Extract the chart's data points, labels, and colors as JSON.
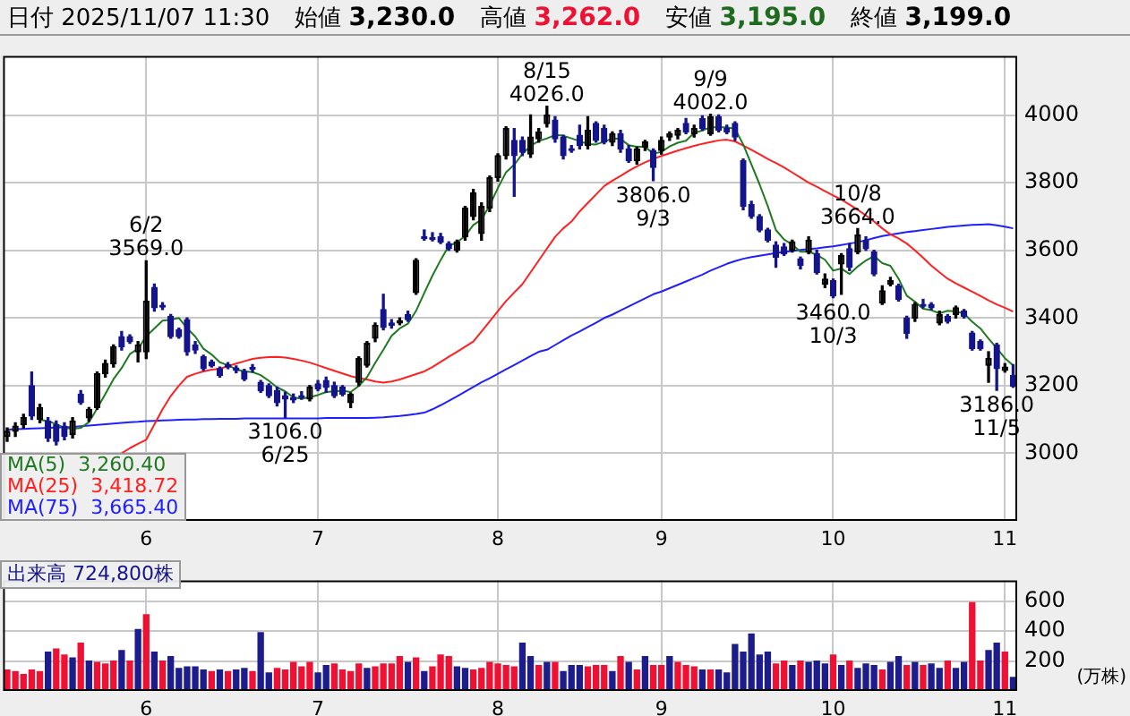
{
  "chart_data": [
    {
      "type": "candlestick",
      "title": "日付 2025/11/07 11:30",
      "categories": [
        null,
        null,
        null,
        null,
        null,
        null,
        null,
        null,
        null,
        null,
        null,
        null,
        null,
        null,
        null,
        null,
        null,
        "6",
        null,
        null,
        null,
        null,
        null,
        null,
        null,
        null,
        null,
        null,
        null,
        null,
        null,
        null,
        null,
        null,
        null,
        null,
        null,
        null,
        "7",
        null,
        null,
        null,
        null,
        null,
        null,
        null,
        null,
        null,
        null,
        null,
        null,
        null,
        null,
        null,
        null,
        null,
        null,
        null,
        null,
        null,
        "8",
        null,
        null,
        null,
        null,
        null,
        null,
        null,
        null,
        null,
        null,
        null,
        null,
        null,
        null,
        null,
        null,
        null,
        null,
        null,
        "9",
        null,
        null,
        null,
        null,
        null,
        null,
        null,
        null,
        null,
        null,
        null,
        null,
        null,
        null,
        null,
        null,
        null,
        null,
        null,
        null,
        "10",
        null,
        null,
        null,
        null,
        null,
        null,
        null,
        null,
        null,
        null,
        null,
        null,
        null,
        null,
        null,
        null,
        null,
        null,
        null,
        null,
        "11",
        null
      ],
      "ohlc": [
        [
          3050,
          3075,
          3035,
          3065
        ],
        [
          3065,
          3090,
          3050,
          3080
        ],
        [
          3085,
          3115,
          3075,
          3105
        ],
        [
          3200,
          3240,
          3100,
          3110
        ],
        [
          3100,
          3145,
          3090,
          3135
        ],
        [
          3095,
          3105,
          3035,
          3045
        ],
        [
          3085,
          3095,
          3025,
          3035
        ],
        [
          3080,
          3090,
          3040,
          3050
        ],
        [
          3055,
          3105,
          3045,
          3095
        ],
        [
          3175,
          3185,
          3145,
          3150
        ],
        [
          3105,
          3135,
          3095,
          3130
        ],
        [
          3135,
          3240,
          3130,
          3235
        ],
        [
          3235,
          3275,
          3225,
          3265
        ],
        [
          3265,
          3320,
          3255,
          3315
        ],
        [
          3345,
          3360,
          3305,
          3315
        ],
        [
          3345,
          3350,
          3325,
          3330
        ],
        [
          3300,
          3330,
          3270,
          3320
        ],
        [
          3300,
          3569,
          3280,
          3450
        ],
        [
          3490,
          3500,
          3420,
          3430
        ],
        [
          3435,
          3445,
          3425,
          3432
        ],
        [
          3405,
          3410,
          3340,
          3345
        ],
        [
          3365,
          3370,
          3340,
          3345
        ],
        [
          3395,
          3400,
          3290,
          3300
        ],
        [
          3320,
          3330,
          3295,
          3305
        ],
        [
          3285,
          3290,
          3245,
          3250
        ],
        [
          3270,
          3275,
          3255,
          3258
        ],
        [
          3250,
          3255,
          3225,
          3230
        ],
        [
          3262,
          3268,
          3250,
          3255
        ],
        [
          3252,
          3258,
          3238,
          3245
        ],
        [
          3242,
          3248,
          3215,
          3220
        ],
        [
          3250,
          3262,
          3240,
          3248
        ],
        [
          3210,
          3215,
          3180,
          3185
        ],
        [
          3200,
          3205,
          3165,
          3170
        ],
        [
          3185,
          3195,
          3140,
          3150
        ],
        [
          3170,
          3180,
          3106,
          3160
        ],
        [
          3165,
          3175,
          3150,
          3158
        ],
        [
          3170,
          3182,
          3160,
          3165
        ],
        [
          3160,
          3200,
          3155,
          3195
        ],
        [
          3205,
          3215,
          3185,
          3190
        ],
        [
          3215,
          3225,
          3180,
          3195
        ],
        [
          3200,
          3210,
          3165,
          3170
        ],
        [
          3195,
          3200,
          3170,
          3175
        ],
        [
          3150,
          3178,
          3135,
          3175
        ],
        [
          3210,
          3285,
          3200,
          3280
        ],
        [
          3260,
          3330,
          3255,
          3325
        ],
        [
          3340,
          3385,
          3330,
          3378
        ],
        [
          3425,
          3470,
          3365,
          3372
        ],
        [
          3385,
          3395,
          3370,
          3378
        ],
        [
          3385,
          3400,
          3380,
          3392
        ],
        [
          3410,
          3420,
          3390,
          3395
        ],
        [
          3475,
          3575,
          3470,
          3570
        ],
        [
          3640,
          3660,
          3630,
          3635
        ],
        [
          3638,
          3652,
          3628,
          3632
        ],
        [
          3640,
          3650,
          3620,
          3625
        ],
        [
          3620,
          3625,
          3600,
          3605
        ],
        [
          3600,
          3630,
          3595,
          3625
        ],
        [
          3640,
          3730,
          3630,
          3725
        ],
        [
          3700,
          3780,
          3690,
          3770
        ],
        [
          3650,
          3740,
          3630,
          3730
        ],
        [
          3725,
          3820,
          3715,
          3815
        ],
        [
          3815,
          3885,
          3805,
          3880
        ],
        [
          3880,
          3965,
          3870,
          3960
        ],
        [
          3925,
          3960,
          3760,
          3880
        ],
        [
          3925,
          3935,
          3880,
          3890
        ],
        [
          3885,
          4000,
          3875,
          3935
        ],
        [
          3930,
          3960,
          3920,
          3950
        ],
        [
          3975,
          4026,
          3965,
          4000
        ],
        [
          3985,
          3995,
          3920,
          3930
        ],
        [
          3935,
          3940,
          3870,
          3880
        ],
        [
          3900,
          3910,
          3890,
          3895
        ],
        [
          3940,
          3970,
          3900,
          3910
        ],
        [
          3910,
          3995,
          3900,
          3955
        ],
        [
          3975,
          3980,
          3920,
          3925
        ],
        [
          3960,
          3970,
          3915,
          3920
        ],
        [
          3920,
          3950,
          3910,
          3945
        ],
        [
          3945,
          3955,
          3890,
          3900
        ],
        [
          3900,
          3910,
          3860,
          3865
        ],
        [
          3865,
          3905,
          3855,
          3900
        ],
        [
          3905,
          3925,
          3895,
          3920
        ],
        [
          3895,
          3900,
          3806,
          3845
        ],
        [
          3895,
          3935,
          3885,
          3925
        ],
        [
          3935,
          3950,
          3925,
          3945
        ],
        [
          3940,
          3960,
          3930,
          3955
        ],
        [
          3975,
          3990,
          3945,
          3950
        ],
        [
          3945,
          3970,
          3935,
          3960
        ],
        [
          3990,
          3998,
          3955,
          3960
        ],
        [
          3945,
          4002,
          3940,
          3995
        ],
        [
          3995,
          4000,
          3950,
          3955
        ],
        [
          3960,
          3970,
          3945,
          3950
        ],
        [
          3975,
          3980,
          3925,
          3935
        ],
        [
          3865,
          3870,
          3720,
          3730
        ],
        [
          3735,
          3745,
          3695,
          3700
        ],
        [
          3700,
          3705,
          3655,
          3660
        ],
        [
          3660,
          3665,
          3625,
          3630
        ],
        [
          3615,
          3625,
          3550,
          3580
        ],
        [
          3610,
          3620,
          3585,
          3590
        ],
        [
          3600,
          3630,
          3595,
          3625
        ],
        [
          3575,
          3580,
          3545,
          3555
        ],
        [
          3595,
          3640,
          3590,
          3630
        ],
        [
          3590,
          3600,
          3530,
          3535
        ],
        [
          3500,
          3530,
          3490,
          3515
        ],
        [
          3510,
          3515,
          3460,
          3465
        ],
        [
          3560,
          3590,
          3470,
          3585
        ],
        [
          3605,
          3620,
          3540,
          3550
        ],
        [
          3595,
          3664,
          3590,
          3645
        ],
        [
          3630,
          3640,
          3600,
          3605
        ],
        [
          3595,
          3600,
          3525,
          3530
        ],
        [
          3445,
          3495,
          3440,
          3480
        ],
        [
          3500,
          3520,
          3495,
          3510
        ],
        [
          3495,
          3500,
          3450,
          3455
        ],
        [
          3400,
          3405,
          3340,
          3355
        ],
        [
          3400,
          3445,
          3390,
          3440
        ],
        [
          3440,
          3455,
          3430,
          3435
        ],
        [
          3440,
          3445,
          3425,
          3430
        ],
        [
          3385,
          3420,
          3380,
          3410
        ],
        [
          3405,
          3410,
          3385,
          3390
        ],
        [
          3410,
          3435,
          3400,
          3430
        ],
        [
          3420,
          3425,
          3400,
          3405
        ],
        [
          3355,
          3360,
          3305,
          3310
        ],
        [
          3330,
          3335,
          3305,
          3310
        ],
        [
          3260,
          3300,
          3210,
          3280
        ],
        [
          3320,
          3325,
          3186,
          3250
        ],
        [
          3245,
          3265,
          3240,
          3255
        ],
        [
          3230,
          3262,
          3195,
          3199
        ]
      ],
      "series": [
        {
          "name": "MA(5)  3,260.40",
          "type": "line",
          "color": "#1e7a1e",
          "values": [
            null,
            null,
            null,
            null,
            3099,
            3095,
            3086,
            3075,
            3072,
            3075,
            3092,
            3132,
            3175,
            3219,
            3252,
            3293,
            3309,
            3346,
            3369,
            3392,
            3395,
            3400,
            3370,
            3345,
            3309,
            3292,
            3269,
            3260,
            3248,
            3242,
            3240,
            3231,
            3214,
            3195,
            3183,
            3165,
            3161,
            3166,
            3172,
            3181,
            3183,
            3185,
            3181,
            3199,
            3225,
            3267,
            3306,
            3347,
            3369,
            3383,
            3421,
            3474,
            3525,
            3571,
            3613,
            3624,
            3642,
            3675,
            3691,
            3733,
            3784,
            3831,
            3853,
            3885,
            3909,
            3923,
            3931,
            3941,
            3939,
            3931,
            3923,
            3914,
            3913,
            3921,
            3931,
            3929,
            3911,
            3906,
            3906,
            3886,
            3891,
            3907,
            3918,
            3924,
            3947,
            3954,
            3964,
            3964,
            3964,
            3959,
            3913,
            3854,
            3795,
            3731,
            3660,
            3632,
            3617,
            3596,
            3596,
            3587,
            3572,
            3540,
            3546,
            3530,
            3552,
            3570,
            3583,
            3562,
            3554,
            3516,
            3466,
            3448,
            3427,
            3423,
            3414,
            3421,
            3419,
            3413,
            3389,
            3369,
            3339,
            3311,
            3281,
            3260
          ]
        },
        {
          "name": "MA(25)  3,418.72",
          "type": "line",
          "color": "#ff2020",
          "values": [
            null,
            null,
            null,
            null,
            null,
            null,
            null,
            null,
            null,
            null,
            null,
            null,
            null,
            null,
            3000,
            3015,
            3028,
            3040,
            3085,
            3130,
            3169,
            3200,
            3226,
            3235,
            3242,
            3247,
            3250,
            3258,
            3265,
            3272,
            3279,
            3282,
            3284,
            3285,
            3283,
            3279,
            3274,
            3268,
            3260,
            3252,
            3244,
            3236,
            3228,
            3222,
            3218,
            3212,
            3209,
            3212,
            3218,
            3226,
            3234,
            3242,
            3255,
            3270,
            3285,
            3300,
            3315,
            3330,
            3360,
            3390,
            3420,
            3450,
            3475,
            3500,
            3535,
            3570,
            3605,
            3640,
            3665,
            3685,
            3715,
            3740,
            3765,
            3790,
            3806,
            3820,
            3835,
            3848,
            3860,
            3870,
            3879,
            3887,
            3895,
            3902,
            3909,
            3915,
            3920,
            3925,
            3927,
            3922,
            3910,
            3897,
            3884,
            3870,
            3858,
            3845,
            3830,
            3815,
            3800,
            3788,
            3775,
            3762,
            3750,
            3735,
            3720,
            3703,
            3685,
            3665,
            3647,
            3635,
            3620,
            3600,
            3578,
            3555,
            3535,
            3516,
            3502,
            3490,
            3478,
            3465,
            3452,
            3440,
            3430,
            3419
          ]
        },
        {
          "name": "MA(75)  3,665.40",
          "type": "line",
          "color": "#2020ff",
          "values": [
            3070,
            3071,
            3072,
            3073,
            3074,
            3075,
            3076,
            3077,
            3078,
            3080,
            3082,
            3084,
            3086,
            3088,
            3090,
            3092,
            3093,
            3095,
            3096,
            3097,
            3098,
            3099,
            3100,
            3100,
            3101,
            3101,
            3102,
            3102,
            3102,
            3103,
            3103,
            3103,
            3103,
            3103,
            3103,
            3103,
            3103,
            3103,
            3103,
            3104,
            3104,
            3104,
            3104,
            3104,
            3104,
            3105,
            3106,
            3108,
            3110,
            3113,
            3116,
            3120,
            3130,
            3142,
            3155,
            3168,
            3182,
            3196,
            3210,
            3222,
            3235,
            3248,
            3261,
            3274,
            3287,
            3300,
            3306,
            3320,
            3334,
            3348,
            3360,
            3373,
            3386,
            3400,
            3410,
            3422,
            3434,
            3446,
            3458,
            3470,
            3478,
            3488,
            3498,
            3508,
            3518,
            3528,
            3540,
            3550,
            3560,
            3568,
            3575,
            3580,
            3584,
            3588,
            3592,
            3595,
            3598,
            3601,
            3604,
            3606,
            3609,
            3612,
            3616,
            3620,
            3624,
            3630,
            3636,
            3642,
            3646,
            3650,
            3654,
            3657,
            3660,
            3663,
            3666,
            3669,
            3671,
            3673,
            3675,
            3676,
            3677,
            3674,
            3670,
            3665
          ]
        }
      ],
      "ylim": [
        2800,
        4175
      ],
      "yticks": [
        3000,
        3200,
        3400,
        3600,
        3800,
        4000
      ],
      "grid": true,
      "legend": "bottom left",
      "annotations": [
        "始値 3,230.0",
        "高値 3,262.0",
        "安値 3,195.0",
        "終値 3,199.0",
        {
          "text": "6/2\n3569.0",
          "y": 3569
        },
        {
          "text": "3106.0\n6/25",
          "y": 3106
        },
        {
          "text": "8/15\n4026.0",
          "y": 4026
        },
        {
          "text": "3806.0\n9/3",
          "y": 3806
        },
        {
          "text": "9/9\n4002.0",
          "y": 4002
        },
        {
          "text": "3460.0\n10/3",
          "y": 3460
        },
        {
          "text": "10/8\n3664.0",
          "y": 3664
        },
        {
          "text": "3186.0\n11/5",
          "y": 3186
        }
      ]
    },
    {
      "type": "bar",
      "title": "出来高 724,800株",
      "ylabel": "(万株)",
      "categories": [
        null,
        null,
        null,
        null,
        null,
        null,
        null,
        null,
        null,
        null,
        null,
        null,
        null,
        null,
        null,
        null,
        null,
        "6",
        null,
        null,
        null,
        null,
        null,
        null,
        null,
        null,
        null,
        null,
        null,
        null,
        null,
        null,
        null,
        null,
        null,
        null,
        null,
        null,
        "7",
        null,
        null,
        null,
        null,
        null,
        null,
        null,
        null,
        null,
        null,
        null,
        null,
        null,
        null,
        null,
        null,
        null,
        null,
        null,
        null,
        null,
        "8",
        null,
        null,
        null,
        null,
        null,
        null,
        null,
        null,
        null,
        null,
        null,
        null,
        null,
        null,
        null,
        null,
        null,
        null,
        null,
        "9",
        null,
        null,
        null,
        null,
        null,
        null,
        null,
        null,
        null,
        null,
        null,
        null,
        null,
        null,
        null,
        null,
        null,
        null,
        null,
        null,
        "10",
        null,
        null,
        null,
        null,
        null,
        null,
        null,
        null,
        null,
        null,
        null,
        null,
        null,
        null,
        null,
        null,
        null,
        null,
        null,
        null,
        "11",
        null
      ],
      "values": [
        140,
        130,
        110,
        140,
        130,
        260,
        280,
        240,
        220,
        320,
        200,
        190,
        180,
        200,
        270,
        200,
        410,
        510,
        260,
        200,
        230,
        150,
        160,
        160,
        140,
        130,
        140,
        130,
        140,
        150,
        130,
        390,
        120,
        150,
        140,
        190,
        160,
        190,
        120,
        170,
        180,
        140,
        130,
        180,
        150,
        160,
        180,
        180,
        230,
        190,
        220,
        130,
        160,
        240,
        230,
        160,
        150,
        140,
        150,
        190,
        180,
        170,
        160,
        320,
        230,
        170,
        190,
        190,
        130,
        170,
        170,
        160,
        170,
        170,
        130,
        230,
        190,
        140,
        230,
        170,
        170,
        230,
        190,
        170,
        160,
        140,
        140,
        140,
        120,
        310,
        260,
        380,
        240,
        260,
        180,
        200,
        170,
        200,
        190,
        200,
        180,
        240,
        170,
        200,
        150,
        180,
        170,
        140,
        190,
        230,
        170,
        190,
        170,
        180,
        150,
        200,
        150,
        190,
        590,
        200,
        270,
        320,
        260,
        90
      ],
      "colors": [
        "#ee1133",
        "#ee1133",
        "#ee1133",
        "#ee1133",
        "#ee1133",
        "#1c1c8c",
        "#ee1133",
        "#ee1133",
        "#1c1c8c",
        "#ee1133",
        "#1c1c8c",
        "#ee1133",
        "#ee1133",
        "#ee1133",
        "#1c1c8c",
        "#ee1133",
        "#1c1c8c",
        "#ee1133",
        "#1c1c8c",
        "#ee1133",
        "#1c1c8c",
        "#1c1c8c",
        "#1c1c8c",
        "#1c1c8c",
        "#1c1c8c",
        "#ee1133",
        "#1c1c8c",
        "#ee1133",
        "#1c1c8c",
        "#1c1c8c",
        "#ee1133",
        "#1c1c8c",
        "#1c1c8c",
        "#ee1133",
        "#ee1133",
        "#ee1133",
        "#ee1133",
        "#ee1133",
        "#1c1c8c",
        "#1c1c8c",
        "#ee1133",
        "#ee1133",
        "#ee1133",
        "#ee1133",
        "#1c1c8c",
        "#ee1133",
        "#ee1133",
        "#ee1133",
        "#ee1133",
        "#1c1c8c",
        "#ee1133",
        "#1c1c8c",
        "#ee1133",
        "#ee1133",
        "#ee1133",
        "#1c1c8c",
        "#1c1c8c",
        "#ee1133",
        "#ee1133",
        "#ee1133",
        "#ee1133",
        "#ee1133",
        "#ee1133",
        "#1c1c8c",
        "#1c1c8c",
        "#ee1133",
        "#1c1c8c",
        "#ee1133",
        "#1c1c8c",
        "#1c1c8c",
        "#1c1c8c",
        "#ee1133",
        "#ee1133",
        "#ee1133",
        "#1c1c8c",
        "#ee1133",
        "#1c1c8c",
        "#ee1133",
        "#1c1c8c",
        "#ee1133",
        "#ee1133",
        "#1c1c8c",
        "#ee1133",
        "#ee1133",
        "#ee1133",
        "#1c1c8c",
        "#ee1133",
        "#1c1c8c",
        "#1c1c8c",
        "#1c1c8c",
        "#1c1c8c",
        "#1c1c8c",
        "#1c1c8c",
        "#1c1c8c",
        "#ee1133",
        "#ee1133",
        "#1c1c8c",
        "#ee1133",
        "#1c1c8c",
        "#1c1c8c",
        "#1c1c8c",
        "#ee1133",
        "#1c1c8c",
        "#ee1133",
        "#1c1c8c",
        "#1c1c8c",
        "#1c1c8c",
        "#ee1133",
        "#1c1c8c",
        "#1c1c8c",
        "#ee1133",
        "#1c1c8c",
        "#ee1133",
        "#1c1c8c",
        "#1c1c8c",
        "#ee1133",
        "#1c1c8c",
        "#1c1c8c",
        "#ee1133",
        "#ee1133",
        "#1c1c8c",
        "#1c1c8c",
        "#ee1133",
        "#1c1c8c"
      ],
      "ylim": [
        0,
        740
      ],
      "yticks": [
        200,
        400,
        600
      ],
      "grid": true
    }
  ]
}
